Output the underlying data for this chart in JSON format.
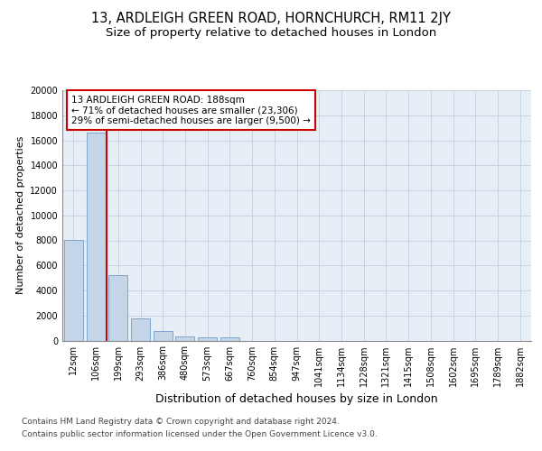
{
  "title1": "13, ARDLEIGH GREEN ROAD, HORNCHURCH, RM11 2JY",
  "title2": "Size of property relative to detached houses in London",
  "xlabel": "Distribution of detached houses by size in London",
  "ylabel": "Number of detached properties",
  "categories": [
    "12sqm",
    "106sqm",
    "199sqm",
    "293sqm",
    "386sqm",
    "480sqm",
    "573sqm",
    "667sqm",
    "760sqm",
    "854sqm",
    "947sqm",
    "1041sqm",
    "1134sqm",
    "1228sqm",
    "1321sqm",
    "1415sqm",
    "1508sqm",
    "1602sqm",
    "1695sqm",
    "1789sqm",
    "1882sqm"
  ],
  "values": [
    8050,
    16600,
    5250,
    1800,
    750,
    350,
    280,
    220,
    0,
    0,
    0,
    0,
    0,
    0,
    0,
    0,
    0,
    0,
    0,
    0,
    0
  ],
  "bar_color": "#c5d5e8",
  "bar_edge_color": "#5b8ec4",
  "grid_color": "#c8d4e4",
  "vline_x": 1.5,
  "annotation_text_line1": "13 ARDLEIGH GREEN ROAD: 188sqm",
  "annotation_text_line2": "← 71% of detached houses are smaller (23,306)",
  "annotation_text_line3": "29% of semi-detached houses are larger (9,500) →",
  "annotation_box_color": "#ffffff",
  "annotation_box_edge_color": "#cc0000",
  "vline_color": "#cc0000",
  "ylim": [
    0,
    20000
  ],
  "yticks": [
    0,
    2000,
    4000,
    6000,
    8000,
    10000,
    12000,
    14000,
    16000,
    18000,
    20000
  ],
  "footer1": "Contains HM Land Registry data © Crown copyright and database right 2024.",
  "footer2": "Contains public sector information licensed under the Open Government Licence v3.0.",
  "bg_color": "#e8eef6",
  "fig_bg_color": "#ffffff",
  "title1_fontsize": 10.5,
  "title2_fontsize": 9.5,
  "ylabel_fontsize": 8,
  "xlabel_fontsize": 9,
  "tick_fontsize": 7,
  "annot_fontsize": 7.5,
  "footer_fontsize": 6.5
}
